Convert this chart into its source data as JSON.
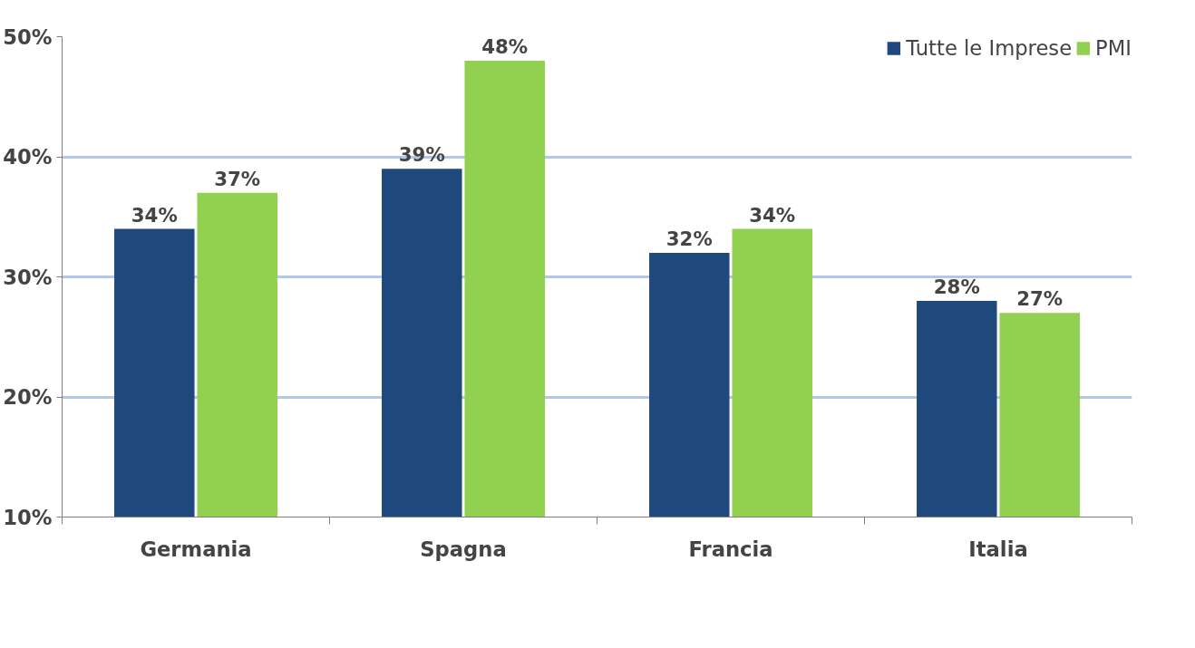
{
  "chart_data": {
    "type": "bar",
    "categories": [
      "Germania",
      "Spagna",
      "Francia",
      "Italia"
    ],
    "series": [
      {
        "name": "Tutte le Imprese",
        "color": "#1f497d",
        "values": [
          34,
          39,
          32,
          28
        ],
        "value_labels": [
          "34%",
          "39%",
          "32%",
          "28%"
        ]
      },
      {
        "name": "PMI",
        "color": "#92d050",
        "values": [
          37,
          48,
          34,
          27
        ],
        "value_labels": [
          "37%",
          "48%",
          "34%",
          "27%"
        ]
      }
    ],
    "ylim": [
      10,
      50
    ],
    "yticks": [
      {
        "value": 10,
        "label": "10%"
      },
      {
        "value": 20,
        "label": "20%"
      },
      {
        "value": 30,
        "label": "30%"
      },
      {
        "value": 40,
        "label": "40%"
      },
      {
        "value": 50,
        "label": "50%"
      }
    ],
    "grid": "y",
    "legend": "top right"
  }
}
